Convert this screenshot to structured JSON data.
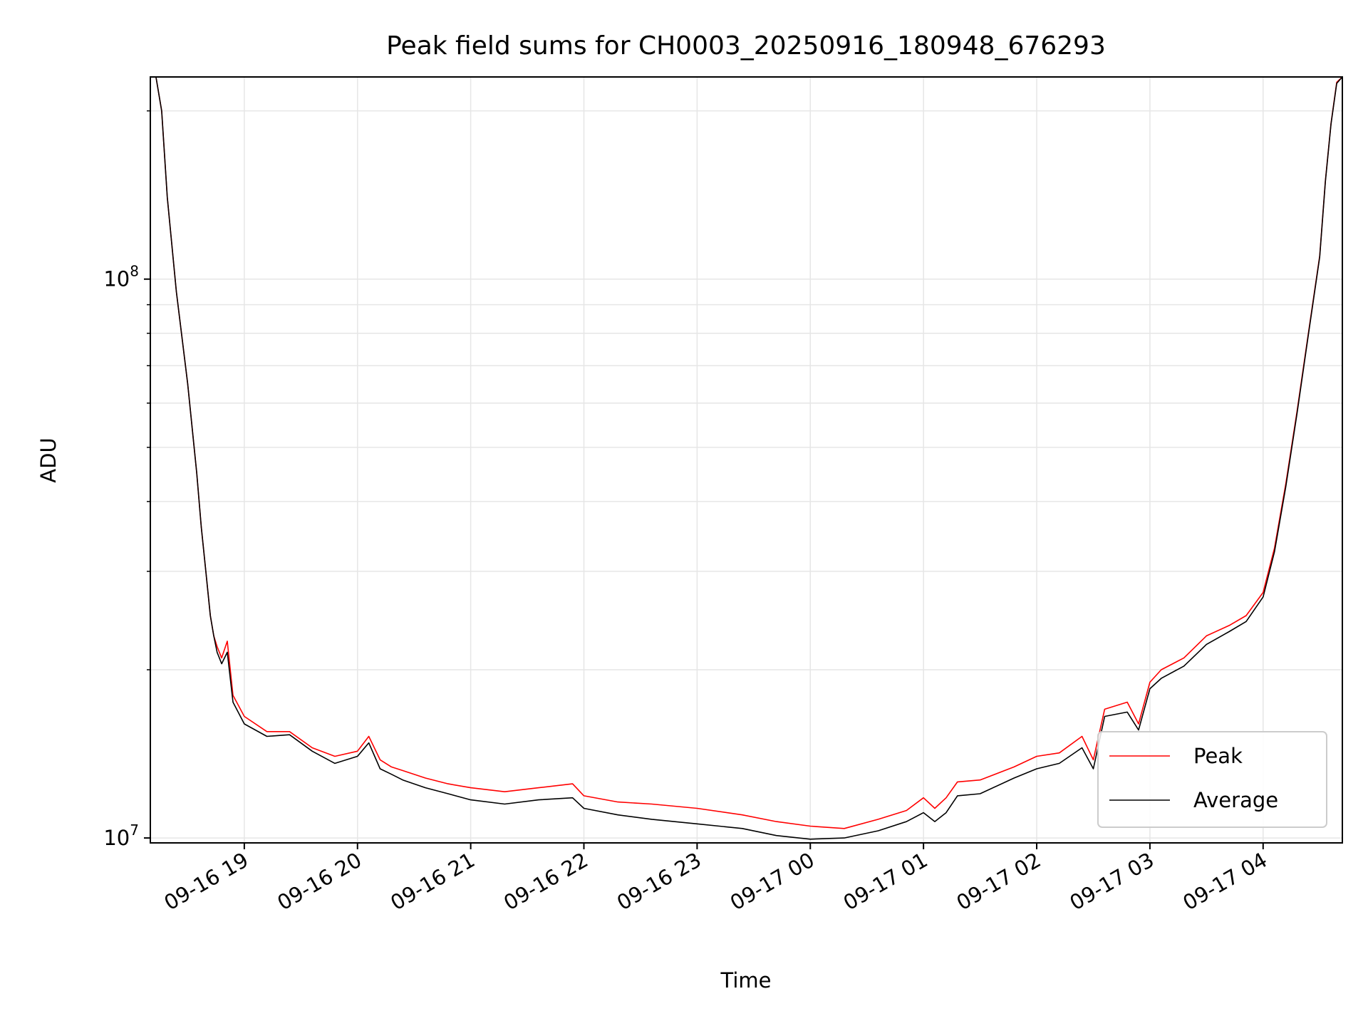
{
  "chart_data": {
    "type": "line",
    "title": "Peak field sums for CH0003_20250916_180948_676293",
    "xlabel": "Time",
    "ylabel": "ADU",
    "yscale": "log",
    "grid": true,
    "legend_position": "lower-right",
    "x_unit": "hours since 09-16 18:00",
    "xlim": [
      18.17,
      28.7
    ],
    "ylim": [
      9800000.0,
      230000000.0
    ],
    "xticks": [
      {
        "x": 19,
        "label": "09-16 19"
      },
      {
        "x": 20,
        "label": "09-16 20"
      },
      {
        "x": 21,
        "label": "09-16 21"
      },
      {
        "x": 22,
        "label": "09-16 22"
      },
      {
        "x": 23,
        "label": "09-16 23"
      },
      {
        "x": 24,
        "label": "09-17 00"
      },
      {
        "x": 25,
        "label": "09-17 01"
      },
      {
        "x": 26,
        "label": "09-17 02"
      },
      {
        "x": 27,
        "label": "09-17 03"
      },
      {
        "x": 28,
        "label": "09-17 04"
      }
    ],
    "yticks_major": [
      {
        "y": 10000000,
        "base": "10",
        "exp": "7"
      },
      {
        "y": 100000000,
        "base": "10",
        "exp": "8"
      }
    ],
    "yticks_minor": [
      20000000,
      30000000,
      40000000,
      50000000,
      60000000,
      70000000,
      80000000,
      90000000,
      200000000
    ],
    "series": [
      {
        "name": "Peak",
        "color": "#ff0000",
        "x": [
          18.17,
          18.22,
          18.27,
          18.32,
          18.4,
          18.5,
          18.58,
          18.62,
          18.66,
          18.7,
          18.73,
          18.76,
          18.8,
          18.85,
          18.9,
          19.0,
          19.2,
          19.4,
          19.6,
          19.8,
          20.0,
          20.1,
          20.2,
          20.3,
          20.4,
          20.6,
          20.8,
          21.0,
          21.3,
          21.6,
          21.9,
          22.0,
          22.3,
          22.6,
          23.0,
          23.4,
          23.7,
          24.0,
          24.3,
          24.6,
          24.85,
          25.0,
          25.1,
          25.2,
          25.3,
          25.5,
          25.8,
          26.0,
          26.2,
          26.4,
          26.5,
          26.6,
          26.8,
          26.9,
          27.0,
          27.1,
          27.3,
          27.5,
          27.7,
          27.85,
          28.0,
          28.1,
          28.2,
          28.3,
          28.4,
          28.5,
          28.55,
          28.6,
          28.65,
          28.7
        ],
        "y": [
          230000000,
          230000000,
          200000000,
          140000000,
          95000000,
          65000000,
          45000000,
          36000000,
          30000000,
          25000000,
          23000000,
          22000000,
          21000000,
          22500000,
          18000000,
          16500000,
          15500000,
          15500000,
          14500000,
          14000000,
          14300000,
          15200000,
          13800000,
          13400000,
          13200000,
          12800000,
          12500000,
          12300000,
          12100000,
          12300000,
          12500000,
          11900000,
          11600000,
          11500000,
          11300000,
          11000000,
          10700000,
          10500000,
          10400000,
          10800000,
          11200000,
          11800000,
          11300000,
          11800000,
          12600000,
          12700000,
          13400000,
          14000000,
          14200000,
          15200000,
          13800000,
          17000000,
          17500000,
          16000000,
          19000000,
          20000000,
          21000000,
          23000000,
          24000000,
          25000000,
          27500000,
          33000000,
          43000000,
          58000000,
          80000000,
          110000000,
          150000000,
          190000000,
          225000000,
          230000000
        ]
      },
      {
        "name": "Average",
        "color": "#000000",
        "x": [
          18.17,
          18.22,
          18.27,
          18.32,
          18.4,
          18.5,
          18.58,
          18.62,
          18.66,
          18.7,
          18.73,
          18.76,
          18.8,
          18.85,
          18.9,
          19.0,
          19.2,
          19.4,
          19.6,
          19.8,
          20.0,
          20.1,
          20.2,
          20.3,
          20.4,
          20.6,
          20.8,
          21.0,
          21.3,
          21.6,
          21.9,
          22.0,
          22.3,
          22.6,
          23.0,
          23.4,
          23.7,
          24.0,
          24.3,
          24.6,
          24.85,
          25.0,
          25.1,
          25.2,
          25.3,
          25.5,
          25.8,
          26.0,
          26.2,
          26.4,
          26.5,
          26.6,
          26.8,
          26.9,
          27.0,
          27.1,
          27.3,
          27.5,
          27.7,
          27.85,
          28.0,
          28.1,
          28.2,
          28.3,
          28.4,
          28.5,
          28.55,
          28.6,
          28.65,
          28.7
        ],
        "y": [
          230000000,
          230000000,
          200000000,
          140000000,
          95000000,
          65000000,
          45000000,
          36000000,
          30000000,
          25000000,
          23000000,
          21500000,
          20500000,
          21500000,
          17500000,
          16000000,
          15200000,
          15300000,
          14300000,
          13600000,
          14000000,
          14800000,
          13300000,
          13000000,
          12700000,
          12300000,
          12000000,
          11700000,
          11500000,
          11700000,
          11800000,
          11300000,
          11000000,
          10800000,
          10600000,
          10400000,
          10100000,
          9950000,
          10000000,
          10300000,
          10700000,
          11100000,
          10700000,
          11100000,
          11900000,
          12000000,
          12800000,
          13300000,
          13600000,
          14500000,
          13300000,
          16500000,
          16800000,
          15600000,
          18500000,
          19300000,
          20300000,
          22200000,
          23400000,
          24400000,
          27000000,
          32500000,
          42500000,
          57500000,
          79500000,
          109500000,
          149500000,
          189500000,
          224000000,
          230000000
        ]
      }
    ]
  }
}
